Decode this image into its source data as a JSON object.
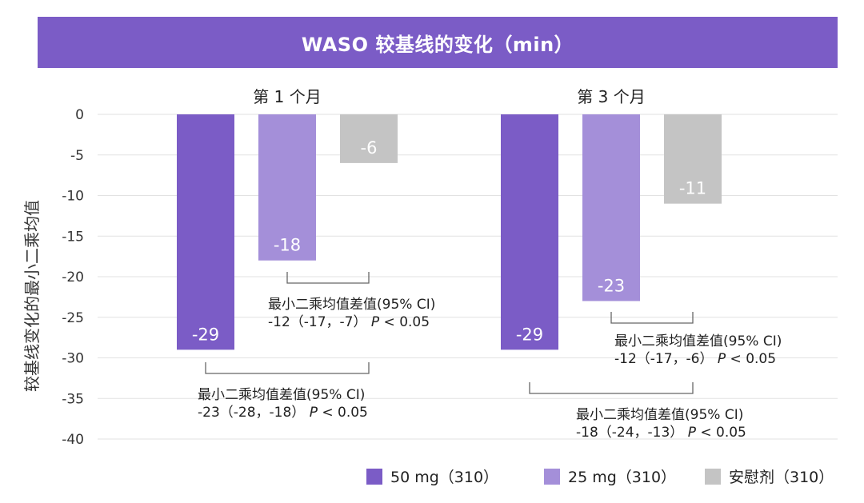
{
  "chart_data": {
    "type": "bar",
    "title": "WASO 较基线的变化（min）",
    "ylabel": "较基线变化的最小二乘均值",
    "ylim": [
      -40,
      0
    ],
    "yticks": [
      "0",
      "-5",
      "-10",
      "-15",
      "-20",
      "-25",
      "-30",
      "-35",
      "-40"
    ],
    "ytick_values": [
      0,
      -5,
      -10,
      -15,
      -20,
      -25,
      -30,
      -35,
      -40
    ],
    "grid": true,
    "legend_position": "bottom-right",
    "categories": [
      "第 1 个月",
      "第 3 个月"
    ],
    "series": [
      {
        "name": "50 mg（310）",
        "color": "#7b5cc6",
        "values": [
          -29,
          -29
        ],
        "labels": [
          "-29",
          "-29"
        ]
      },
      {
        "name": "25 mg（310）",
        "color": "#a48fd9",
        "values": [
          -18,
          -23
        ],
        "labels": [
          "-18",
          "-23"
        ]
      },
      {
        "name": "安慰剂（310）",
        "color": "#c4c4c4",
        "values": [
          -6,
          -11
        ],
        "labels": [
          "-6",
          "-11"
        ]
      }
    ],
    "annotations": [
      {
        "line1": "最小二乘均值差值(95% CI)",
        "line2_prefix": "-12（-17，-7）",
        "p_label": "P",
        "p_text": "< 0.05"
      },
      {
        "line1": "最小二乘均值差值(95% CI)",
        "line2_prefix": "-23（-28，-18）",
        "p_label": "P",
        "p_text": "< 0.05"
      },
      {
        "line1": "最小二乘均值差值(95% CI)",
        "line2_prefix": "-12（-17，-6）",
        "p_label": "P",
        "p_text": "< 0.05"
      },
      {
        "line1": "最小二乘均值差值(95% CI)",
        "line2_prefix": "-18（-24，-13）",
        "p_label": "P",
        "p_text": "< 0.05"
      }
    ]
  }
}
